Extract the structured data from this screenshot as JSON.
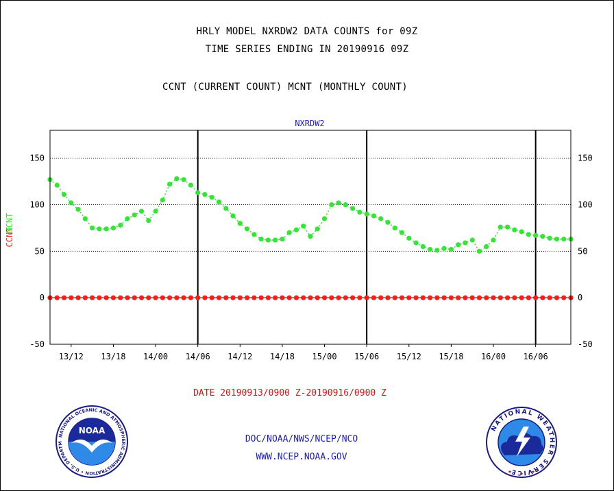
{
  "header": {
    "title_line1": "HRLY MODEL NXRDW2 DATA COUNTS for 09Z",
    "title_line2": "TIME SERIES ENDING IN 20190916 09Z",
    "subtitle": "CCNT (CURRENT COUNT) MCNT (MONTHLY COUNT)"
  },
  "chart_data": {
    "type": "line",
    "title": "NXRDW2",
    "ylabel_ccnt": "CCNT",
    "ylabel_mcnt": "MCNT",
    "ylim": [
      -50,
      180
    ],
    "yticks": [
      150,
      100,
      50,
      0,
      -50
    ],
    "grid": "horizontal dotted at 150, 100, 50",
    "x_start": "2019-09-13 09Z",
    "x_end": "2019-09-16 09Z",
    "x_step_hours": 1,
    "x_tick_labels": [
      "13/12",
      "13/18",
      "14/00",
      "14/06",
      "14/12",
      "14/18",
      "15/00",
      "15/06",
      "15/12",
      "15/18",
      "16/00",
      "16/06"
    ],
    "day_boundaries": [
      "14/06",
      "15/06",
      "16/06"
    ],
    "series": [
      {
        "name": "CCNT",
        "color": "#ff1a1a",
        "values": [
          0,
          0,
          0,
          0,
          0,
          0,
          0,
          0,
          0,
          0,
          0,
          0,
          0,
          0,
          0,
          0,
          0,
          0,
          0,
          0,
          0,
          0,
          0,
          0,
          0,
          0,
          0,
          0,
          0,
          0,
          0,
          0,
          0,
          0,
          0,
          0,
          0,
          0,
          0,
          0,
          0,
          0,
          0,
          0,
          0,
          0,
          0,
          0,
          0,
          0,
          0,
          0,
          0,
          0,
          0,
          0,
          0,
          0,
          0,
          0,
          0,
          0,
          0,
          0,
          0,
          0,
          0,
          0,
          0,
          0,
          0,
          0,
          0,
          0,
          0
        ]
      },
      {
        "name": "MCNT",
        "color": "#33e633",
        "values": [
          127,
          121,
          111,
          102,
          95,
          85,
          75,
          74,
          74,
          75,
          78,
          85,
          89,
          93,
          83,
          93,
          105,
          122,
          128,
          127,
          121,
          113,
          111,
          108,
          103,
          96,
          88,
          80,
          74,
          68,
          63,
          62,
          62,
          63,
          70,
          73,
          77,
          66,
          74,
          85,
          100,
          102,
          100,
          96,
          92,
          90,
          88,
          85,
          81,
          75,
          70,
          64,
          59,
          55,
          52,
          51,
          53,
          52,
          57,
          59,
          62,
          50,
          55,
          62,
          76,
          76,
          73,
          71,
          68,
          67,
          66,
          64,
          63,
          63,
          63
        ]
      }
    ]
  },
  "footer": {
    "date_range": "DATE 20190913/0900 Z-20190916/0900 Z",
    "org": "DOC/NOAA/NWS/NCEP/NCO",
    "url": "WWW.NCEP.NOAA.GOV",
    "noaa_logo_text": "NOAA",
    "noaa_ring_text": "NATIONAL OCEANIC AND ATMOSPHERIC ADMINISTRATION • U.S. DEPARTMENT OF COMMERCE",
    "nws_ring_text": "NATIONAL WEATHER SERVICE"
  }
}
